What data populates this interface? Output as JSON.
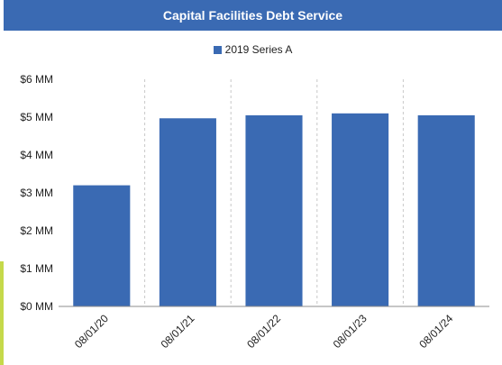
{
  "title": "Capital Facilities Debt Service",
  "colors": {
    "header": "#3a6ab3",
    "bar": "#3a6ab3",
    "accent": "#c5d94a"
  },
  "chart_data": {
    "type": "bar",
    "title": "Capital Facilities Debt Service",
    "categories": [
      "08/01/20",
      "08/01/21",
      "08/01/22",
      "08/01/23",
      "08/01/24"
    ],
    "series": [
      {
        "name": "2019 Series A",
        "values": [
          3.2,
          4.97,
          5.05,
          5.1,
          5.05
        ]
      }
    ],
    "y_ticks": [
      "$0 MM",
      "$1 MM",
      "$2 MM",
      "$3 MM",
      "$4 MM",
      "$5 MM",
      "$6 MM"
    ],
    "ylim": [
      0,
      6
    ],
    "legend_position": "top",
    "grid": "vertical-dashed"
  }
}
